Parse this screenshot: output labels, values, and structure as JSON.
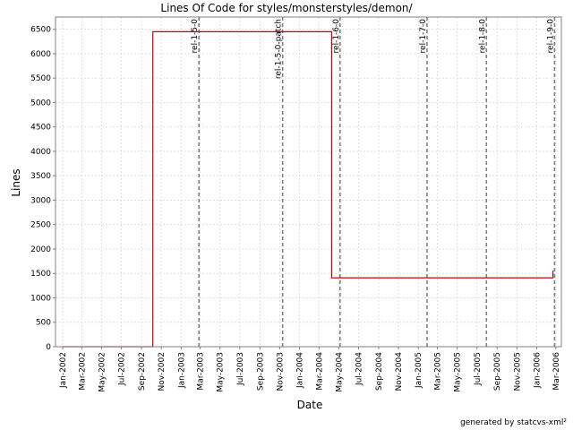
{
  "chart_data": {
    "type": "line",
    "title": "Lines Of Code for styles/monsterstyles/demon/",
    "xlabel": "Date",
    "ylabel": "Lines",
    "ylim": [
      0,
      6750
    ],
    "yticks": [
      0,
      500,
      1000,
      1500,
      2000,
      2500,
      3000,
      3500,
      4000,
      4500,
      5000,
      5500,
      6000,
      6500
    ],
    "xticks": [
      "Jan-2002",
      "Mar-2002",
      "May-2002",
      "Jul-2002",
      "Sep-2002",
      "Nov-2002",
      "Jan-2003",
      "Mar-2003",
      "May-2003",
      "Jul-2003",
      "Sep-2003",
      "Nov-2003",
      "Jan-2004",
      "Mar-2004",
      "May-2004",
      "Jul-2004",
      "Sep-2004",
      "Nov-2004",
      "Jan-2005",
      "Mar-2005",
      "May-2005",
      "Jul-2005",
      "Sep-2005",
      "Nov-2005",
      "Jan-2006",
      "Mar-2006"
    ],
    "grid": true,
    "series": [
      {
        "color": "#cc0000",
        "x": [
          "2002-01-01",
          "2002-10-06",
          "2002-10-06",
          "2004-04-09",
          "2004-04-09",
          "2006-02-20",
          "2006-02-20"
        ],
        "y": [
          0,
          0,
          6450,
          6450,
          1410,
          1410,
          1560
        ]
      }
    ],
    "markers": [
      {
        "label": "rel-1-5-0",
        "date": "2003-02-25"
      },
      {
        "label": "rel-1-5-0-patch",
        "date": "2003-11-10"
      },
      {
        "label": "rel-1-6-0",
        "date": "2004-05-05"
      },
      {
        "label": "rel-1-7-0",
        "date": "2005-01-28"
      },
      {
        "label": "rel-1-8-0",
        "date": "2005-07-30"
      },
      {
        "label": "rel-1-9-0",
        "date": "2006-02-25"
      }
    ],
    "marker_color": "#808080"
  },
  "footer": "generated by statcvs-xml²"
}
